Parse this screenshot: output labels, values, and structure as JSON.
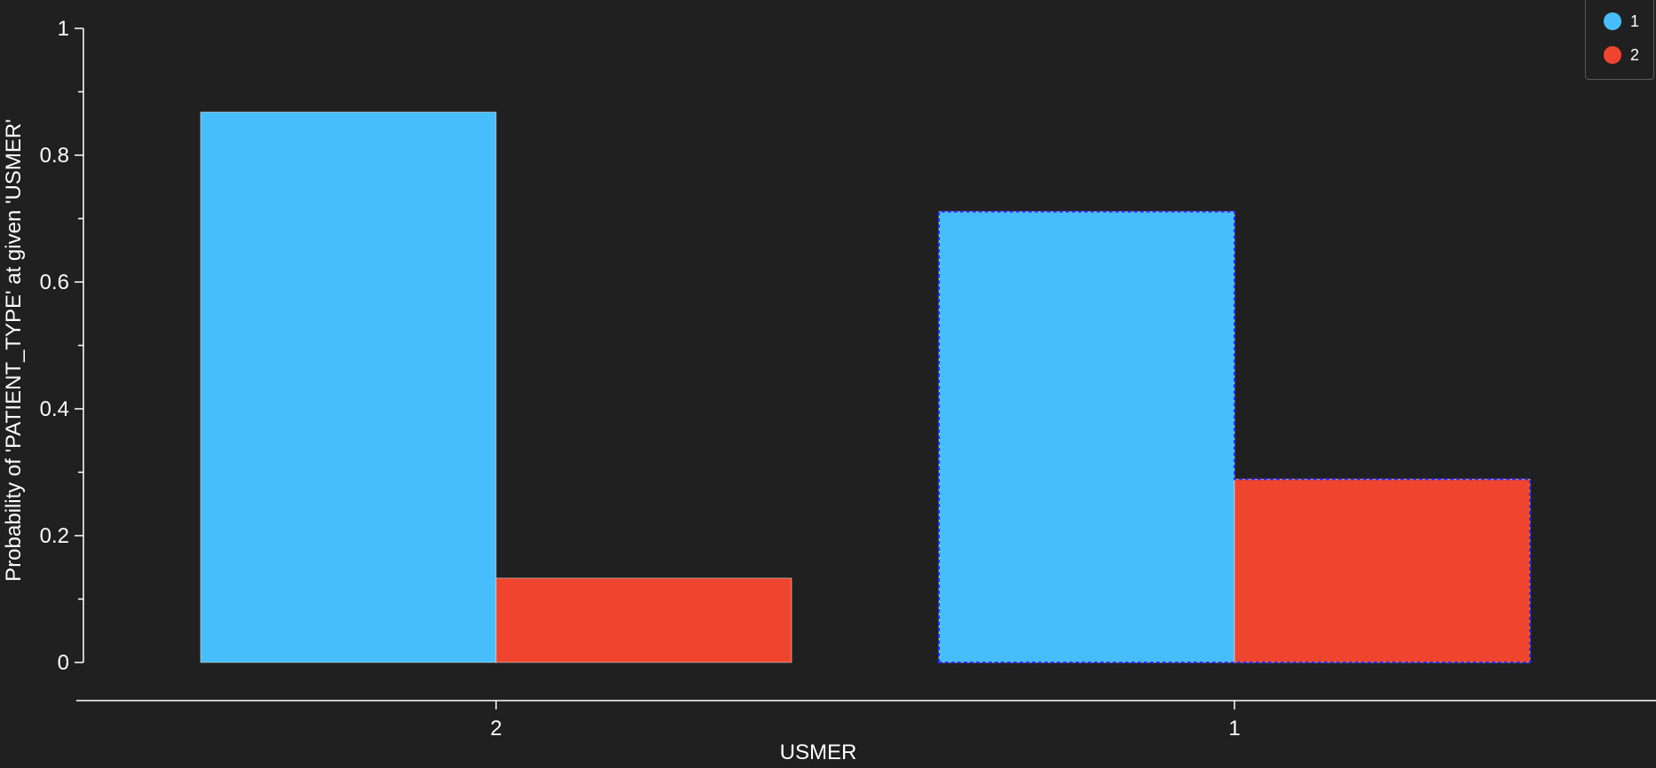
{
  "chart_data": {
    "type": "bar",
    "categories": [
      "2",
      "1"
    ],
    "series": [
      {
        "name": "1",
        "values": [
          0.868,
          0.711
        ],
        "color": "#47bdfb"
      },
      {
        "name": "2",
        "values": [
          0.133,
          0.289
        ],
        "color": "#ef452f"
      }
    ],
    "xlabel": "USMER",
    "ylabel": "Probability of 'PATIENT_TYPE' at given 'USMER'",
    "ylim": [
      0,
      1
    ],
    "yticks": [
      "0",
      "0.2",
      "0.4",
      "0.6",
      "0.8",
      "1"
    ],
    "grid": false,
    "legend_position": "top-right",
    "highlighted_category": "1",
    "highlight_color": "#2a2aff"
  }
}
